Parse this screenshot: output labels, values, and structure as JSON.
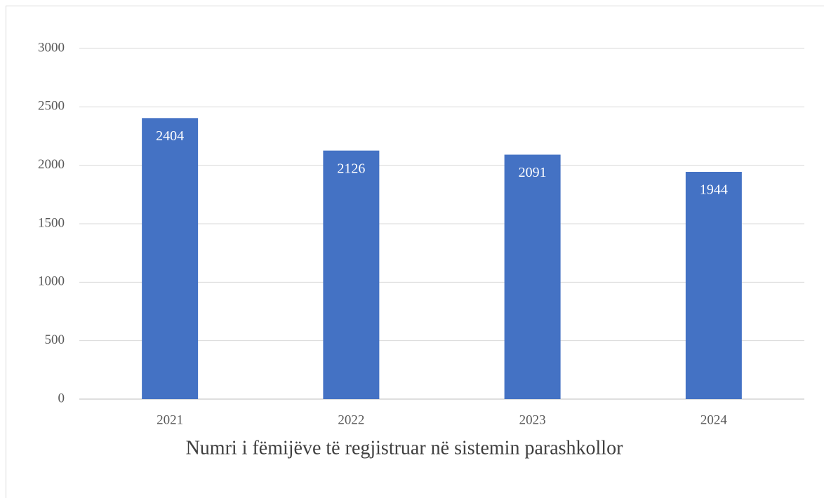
{
  "chart_data": {
    "type": "bar",
    "x_axis_title": "Numri i fëmijëve të regjistruar në sistemin parashkollor",
    "categories": [
      "2021",
      "2022",
      "2023",
      "2024"
    ],
    "values": [
      2404,
      2126,
      2091,
      1944
    ],
    "color": "#4472c4",
    "ylim": [
      0,
      3000
    ],
    "yticks": [
      0,
      500,
      1000,
      1500,
      2000,
      2500,
      3000
    ],
    "grid": true
  }
}
